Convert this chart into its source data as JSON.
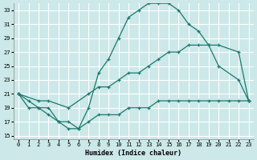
{
  "xlabel": "Humidex (Indice chaleur)",
  "bg_color": "#cce8e8",
  "grid_color": "#ffffff",
  "line_color": "#1a7a6e",
  "xlim": [
    -0.5,
    23.5
  ],
  "ylim": [
    14.5,
    34.0
  ],
  "xticks": [
    0,
    1,
    2,
    3,
    4,
    5,
    6,
    7,
    8,
    9,
    10,
    11,
    12,
    13,
    14,
    15,
    16,
    17,
    18,
    19,
    20,
    21,
    22,
    23
  ],
  "yticks": [
    15,
    17,
    19,
    21,
    23,
    25,
    27,
    29,
    31,
    33
  ],
  "curve1_x": [
    0,
    1,
    2,
    3,
    4,
    5,
    6,
    7,
    8,
    9,
    10,
    11,
    12,
    13,
    14,
    15,
    16,
    17,
    18,
    19,
    20,
    22,
    23
  ],
  "curve1_y": [
    21,
    20,
    19,
    19,
    17,
    16,
    16,
    19,
    24,
    26,
    29,
    32,
    33,
    34,
    34,
    34,
    33,
    31,
    30,
    28,
    25,
    23,
    20
  ],
  "curve2_x": [
    0,
    2,
    3,
    5,
    7,
    8,
    9,
    10,
    11,
    12,
    13,
    14,
    15,
    16,
    17,
    18,
    19,
    20,
    22,
    23
  ],
  "curve2_y": [
    21,
    20,
    20,
    19,
    21,
    22,
    22,
    23,
    24,
    24,
    25,
    26,
    27,
    27,
    28,
    28,
    28,
    28,
    27,
    20
  ],
  "curve3_x": [
    0,
    1,
    2,
    3,
    4,
    5,
    6,
    7,
    8,
    9,
    10,
    11,
    12,
    13,
    14,
    15,
    16,
    17,
    18,
    19,
    20,
    21,
    22,
    23
  ],
  "curve3_y": [
    21,
    19,
    19,
    18,
    17,
    17,
    16,
    17,
    18,
    18,
    18,
    19,
    19,
    19,
    20,
    20,
    20,
    20,
    20,
    20,
    20,
    20,
    20,
    20
  ]
}
